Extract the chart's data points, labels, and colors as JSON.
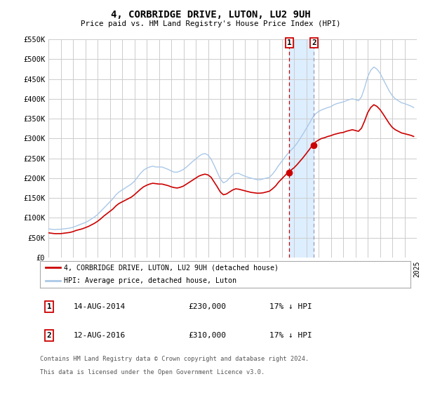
{
  "title": "4, CORBRIDGE DRIVE, LUTON, LU2 9UH",
  "subtitle": "Price paid vs. HM Land Registry's House Price Index (HPI)",
  "ylim": [
    0,
    550000
  ],
  "yticks": [
    0,
    50000,
    100000,
    150000,
    200000,
    250000,
    300000,
    350000,
    400000,
    450000,
    500000,
    550000
  ],
  "ytick_labels": [
    "£0",
    "£50K",
    "£100K",
    "£150K",
    "£200K",
    "£250K",
    "£300K",
    "£350K",
    "£400K",
    "£450K",
    "£500K",
    "£550K"
  ],
  "sale1_date": 2014.62,
  "sale1_price": 230000,
  "sale1_label": "1",
  "sale2_date": 2016.62,
  "sale2_price": 310000,
  "sale2_label": "2",
  "legend_label_red": "4, CORBRIDGE DRIVE, LUTON, LU2 9UH (detached house)",
  "legend_label_blue": "HPI: Average price, detached house, Luton",
  "footer1": "Contains HM Land Registry data © Crown copyright and database right 2024.",
  "footer2": "This data is licensed under the Open Government Licence v3.0.",
  "red_color": "#cc0000",
  "blue_color": "#aac8e8",
  "shade_color": "#ddeeff",
  "vline1_color": "#cc0000",
  "vline2_color": "#9999bb",
  "background_color": "#ffffff",
  "grid_color": "#cccccc",
  "hpi_data_x": [
    1995.0,
    1995.25,
    1995.5,
    1995.75,
    1996.0,
    1996.25,
    1996.5,
    1996.75,
    1997.0,
    1997.25,
    1997.5,
    1997.75,
    1998.0,
    1998.25,
    1998.5,
    1998.75,
    1999.0,
    1999.25,
    1999.5,
    1999.75,
    2000.0,
    2000.25,
    2000.5,
    2000.75,
    2001.0,
    2001.25,
    2001.5,
    2001.75,
    2002.0,
    2002.25,
    2002.5,
    2002.75,
    2003.0,
    2003.25,
    2003.5,
    2003.75,
    2004.0,
    2004.25,
    2004.5,
    2004.75,
    2005.0,
    2005.25,
    2005.5,
    2005.75,
    2006.0,
    2006.25,
    2006.5,
    2006.75,
    2007.0,
    2007.25,
    2007.5,
    2007.75,
    2008.0,
    2008.25,
    2008.5,
    2008.75,
    2009.0,
    2009.25,
    2009.5,
    2009.75,
    2010.0,
    2010.25,
    2010.5,
    2010.75,
    2011.0,
    2011.25,
    2011.5,
    2011.75,
    2012.0,
    2012.25,
    2012.5,
    2012.75,
    2013.0,
    2013.25,
    2013.5,
    2013.75,
    2014.0,
    2014.25,
    2014.5,
    2014.75,
    2015.0,
    2015.25,
    2015.5,
    2015.75,
    2016.0,
    2016.25,
    2016.5,
    2016.75,
    2017.0,
    2017.25,
    2017.5,
    2017.75,
    2018.0,
    2018.25,
    2018.5,
    2018.75,
    2019.0,
    2019.25,
    2019.5,
    2019.75,
    2020.0,
    2020.25,
    2020.5,
    2020.75,
    2021.0,
    2021.25,
    2021.5,
    2021.75,
    2022.0,
    2022.25,
    2022.5,
    2022.75,
    2023.0,
    2023.25,
    2023.5,
    2023.75,
    2024.0,
    2024.25,
    2024.5,
    2024.75
  ],
  "hpi_data_y": [
    72000,
    71000,
    70000,
    71000,
    71000,
    72000,
    73000,
    74000,
    76000,
    79000,
    82000,
    85000,
    88000,
    92000,
    97000,
    102000,
    108000,
    116000,
    124000,
    132000,
    140000,
    148000,
    158000,
    165000,
    170000,
    175000,
    180000,
    185000,
    192000,
    202000,
    212000,
    220000,
    225000,
    228000,
    230000,
    228000,
    228000,
    228000,
    225000,
    222000,
    218000,
    215000,
    215000,
    218000,
    222000,
    228000,
    235000,
    242000,
    248000,
    255000,
    260000,
    262000,
    258000,
    248000,
    232000,
    215000,
    198000,
    188000,
    192000,
    200000,
    208000,
    212000,
    212000,
    208000,
    205000,
    202000,
    200000,
    198000,
    196000,
    196000,
    198000,
    200000,
    202000,
    210000,
    220000,
    232000,
    242000,
    252000,
    262000,
    270000,
    278000,
    288000,
    300000,
    312000,
    325000,
    338000,
    352000,
    362000,
    368000,
    372000,
    375000,
    378000,
    380000,
    385000,
    388000,
    390000,
    392000,
    395000,
    398000,
    400000,
    398000,
    395000,
    405000,
    428000,
    455000,
    472000,
    480000,
    475000,
    465000,
    450000,
    435000,
    420000,
    408000,
    400000,
    395000,
    390000,
    388000,
    385000,
    382000,
    378000
  ],
  "red_data_x": [
    1995.0,
    1995.25,
    1995.5,
    1995.75,
    1996.0,
    1996.25,
    1996.5,
    1996.75,
    1997.0,
    1997.25,
    1997.5,
    1997.75,
    1998.0,
    1998.25,
    1998.5,
    1998.75,
    1999.0,
    1999.25,
    1999.5,
    1999.75,
    2000.0,
    2000.25,
    2000.5,
    2000.75,
    2001.0,
    2001.25,
    2001.5,
    2001.75,
    2002.0,
    2002.25,
    2002.5,
    2002.75,
    2003.0,
    2003.25,
    2003.5,
    2003.75,
    2004.0,
    2004.25,
    2004.5,
    2004.75,
    2005.0,
    2005.25,
    2005.5,
    2005.75,
    2006.0,
    2006.25,
    2006.5,
    2006.75,
    2007.0,
    2007.25,
    2007.5,
    2007.75,
    2008.0,
    2008.25,
    2008.5,
    2008.75,
    2009.0,
    2009.25,
    2009.5,
    2009.75,
    2010.0,
    2010.25,
    2010.5,
    2010.75,
    2011.0,
    2011.25,
    2011.5,
    2011.75,
    2012.0,
    2012.25,
    2012.5,
    2012.75,
    2013.0,
    2013.25,
    2013.5,
    2013.75,
    2014.0,
    2014.25,
    2014.5,
    2014.75,
    2015.0,
    2015.25,
    2015.5,
    2015.75,
    2016.0,
    2016.25,
    2016.5,
    2016.75,
    2017.0,
    2017.25,
    2017.5,
    2017.75,
    2018.0,
    2018.25,
    2018.5,
    2018.75,
    2019.0,
    2019.25,
    2019.5,
    2019.75,
    2020.0,
    2020.25,
    2020.5,
    2020.75,
    2021.0,
    2021.25,
    2021.5,
    2021.75,
    2022.0,
    2022.25,
    2022.5,
    2022.75,
    2023.0,
    2023.25,
    2023.5,
    2023.75,
    2024.0,
    2024.25,
    2024.5,
    2024.75
  ],
  "red_data_y": [
    62000,
    61000,
    60000,
    60000,
    60000,
    61000,
    62000,
    63000,
    65000,
    68000,
    70000,
    72000,
    75000,
    78000,
    82000,
    86000,
    91000,
    97000,
    104000,
    110000,
    116000,
    122000,
    130000,
    136000,
    140000,
    144000,
    148000,
    152000,
    158000,
    165000,
    172000,
    178000,
    182000,
    185000,
    187000,
    186000,
    185000,
    185000,
    183000,
    181000,
    178000,
    176000,
    175000,
    177000,
    180000,
    185000,
    190000,
    195000,
    200000,
    205000,
    208000,
    210000,
    208000,
    202000,
    190000,
    178000,
    165000,
    158000,
    160000,
    165000,
    170000,
    173000,
    172000,
    170000,
    168000,
    166000,
    164000,
    163000,
    162000,
    162000,
    163000,
    165000,
    167000,
    173000,
    180000,
    190000,
    198000,
    206000,
    214000,
    220000,
    226000,
    234000,
    243000,
    252000,
    262000,
    272000,
    283000,
    291000,
    296000,
    300000,
    302000,
    305000,
    307000,
    310000,
    312000,
    314000,
    315000,
    318000,
    320000,
    322000,
    320000,
    318000,
    326000,
    344000,
    365000,
    378000,
    385000,
    381000,
    373000,
    362000,
    350000,
    338000,
    328000,
    322000,
    318000,
    314000,
    312000,
    310000,
    308000,
    305000
  ]
}
